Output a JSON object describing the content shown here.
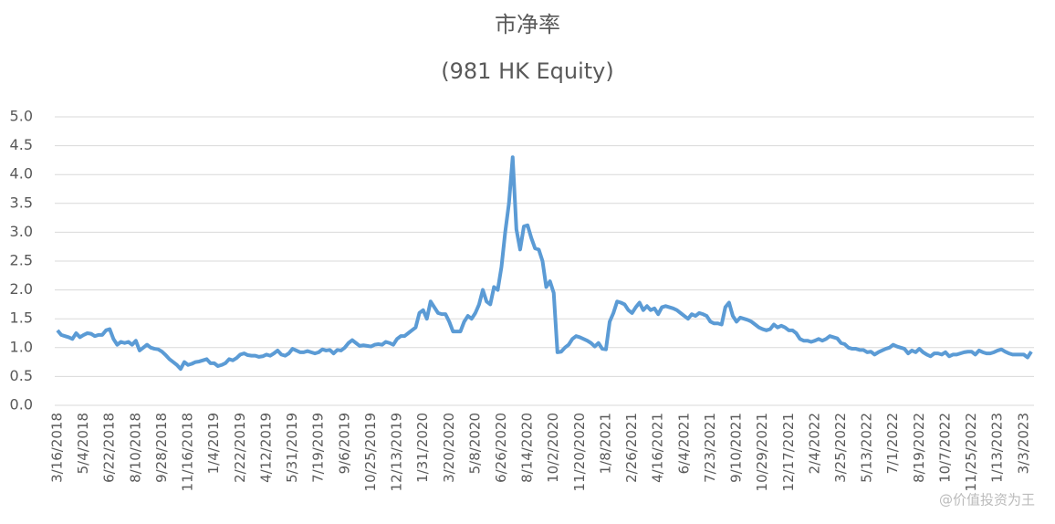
{
  "chart_data": {
    "type": "line",
    "title": "市净率",
    "subtitle": "(981 HK Equity)",
    "watermark": "@价值投资为王",
    "categories": [
      "3/16/2018",
      null,
      null,
      null,
      null,
      null,
      null,
      "5/4/2018",
      null,
      null,
      null,
      null,
      null,
      null,
      "6/22/2018",
      null,
      null,
      null,
      null,
      null,
      null,
      "8/10/2018",
      null,
      null,
      null,
      null,
      null,
      null,
      "9/28/2018",
      null,
      null,
      null,
      null,
      null,
      null,
      "11/16/2018",
      null,
      null,
      null,
      null,
      null,
      null,
      "1/4/2019",
      null,
      null,
      null,
      null,
      null,
      null,
      "2/22/2019",
      null,
      null,
      null,
      null,
      null,
      null,
      "4/12/2019",
      null,
      null,
      null,
      null,
      null,
      null,
      "5/31/2019",
      null,
      null,
      null,
      null,
      null,
      null,
      "7/19/2019",
      null,
      null,
      null,
      null,
      null,
      null,
      "9/6/2019",
      null,
      null,
      null,
      null,
      null,
      null,
      "10/25/2019",
      null,
      null,
      null,
      null,
      null,
      null,
      "12/13/2019",
      null,
      null,
      null,
      null,
      null,
      null,
      "1/31/2020",
      null,
      null,
      null,
      null,
      null,
      null,
      "3/20/2020",
      null,
      null,
      null,
      null,
      null,
      null,
      "5/8/2020",
      null,
      null,
      null,
      null,
      null,
      null,
      "6/26/2020",
      null,
      null,
      null,
      null,
      null,
      null,
      "8/14/2020",
      null,
      null,
      null,
      null,
      null,
      null,
      "10/2/2020",
      null,
      null,
      null,
      null,
      null,
      null,
      "11/20/2020",
      null,
      null,
      null,
      null,
      null,
      null,
      "1/8/2021",
      null,
      null,
      null,
      null,
      null,
      null,
      "2/26/2021",
      null,
      null,
      null,
      null,
      null,
      null,
      "4/16/2021",
      null,
      null,
      null,
      null,
      null,
      null,
      "6/4/2021",
      null,
      null,
      null,
      null,
      null,
      null,
      "7/23/2021",
      null,
      null,
      null,
      null,
      null,
      null,
      "9/10/2021",
      null,
      null,
      null,
      null,
      null,
      null,
      "10/29/2021",
      null,
      null,
      null,
      null,
      null,
      null,
      "12/17/2021",
      null,
      null,
      null,
      null,
      null,
      null,
      "2/4/2022",
      null,
      null,
      null,
      null,
      null,
      null,
      "3/25/2022",
      null,
      null,
      null,
      null,
      null,
      null,
      "5/13/2022",
      null,
      null,
      null,
      null,
      null,
      null,
      "7/1/2022",
      null,
      null,
      null,
      null,
      null,
      null,
      "8/19/2022",
      null,
      null,
      null,
      null,
      null,
      null,
      "10/7/2022",
      null,
      null,
      null,
      null,
      null,
      null,
      "11/25/2022",
      null,
      null,
      null,
      null,
      null,
      null,
      "1/13/2023",
      null,
      null,
      null,
      null,
      null,
      null,
      "3/3/2023",
      null,
      null
    ],
    "values": [
      1.3,
      1.22,
      1.2,
      1.18,
      1.15,
      1.25,
      1.18,
      1.22,
      1.25,
      1.24,
      1.2,
      1.22,
      1.22,
      1.3,
      1.32,
      1.15,
      1.05,
      1.1,
      1.08,
      1.1,
      1.05,
      1.12,
      0.95,
      1.0,
      1.05,
      1.0,
      0.98,
      0.97,
      0.93,
      0.87,
      0.8,
      0.75,
      0.7,
      0.63,
      0.75,
      0.7,
      0.72,
      0.75,
      0.76,
      0.78,
      0.8,
      0.73,
      0.73,
      0.68,
      0.7,
      0.73,
      0.8,
      0.78,
      0.82,
      0.88,
      0.9,
      0.87,
      0.86,
      0.86,
      0.84,
      0.85,
      0.88,
      0.86,
      0.9,
      0.95,
      0.88,
      0.86,
      0.9,
      0.98,
      0.95,
      0.92,
      0.92,
      0.94,
      0.92,
      0.9,
      0.92,
      0.97,
      0.95,
      0.96,
      0.9,
      0.96,
      0.95,
      1.0,
      1.08,
      1.13,
      1.08,
      1.03,
      1.04,
      1.03,
      1.02,
      1.05,
      1.06,
      1.05,
      1.1,
      1.08,
      1.05,
      1.15,
      1.2,
      1.2,
      1.25,
      1.3,
      1.35,
      1.6,
      1.65,
      1.5,
      1.8,
      1.7,
      1.6,
      1.58,
      1.58,
      1.45,
      1.28,
      1.28,
      1.28,
      1.45,
      1.55,
      1.5,
      1.6,
      1.75,
      2.0,
      1.8,
      1.75,
      2.05,
      2.0,
      2.4,
      3.0,
      3.5,
      4.3,
      3.05,
      2.7,
      3.1,
      3.12,
      2.9,
      2.72,
      2.7,
      2.5,
      2.05,
      2.15,
      1.95,
      0.92,
      0.93,
      1.0,
      1.05,
      1.15,
      1.2,
      1.18,
      1.15,
      1.12,
      1.08,
      1.02,
      1.08,
      0.98,
      0.97,
      1.45,
      1.6,
      1.8,
      1.78,
      1.75,
      1.65,
      1.6,
      1.7,
      1.78,
      1.65,
      1.72,
      1.65,
      1.68,
      1.58,
      1.7,
      1.72,
      1.7,
      1.68,
      1.65,
      1.6,
      1.55,
      1.5,
      1.58,
      1.55,
      1.6,
      1.58,
      1.55,
      1.45,
      1.42,
      1.42,
      1.4,
      1.7,
      1.78,
      1.55,
      1.45,
      1.52,
      1.5,
      1.48,
      1.45,
      1.4,
      1.35,
      1.32,
      1.3,
      1.32,
      1.4,
      1.35,
      1.38,
      1.35,
      1.3,
      1.3,
      1.25,
      1.15,
      1.12,
      1.12,
      1.1,
      1.12,
      1.15,
      1.12,
      1.15,
      1.2,
      1.18,
      1.16,
      1.08,
      1.06,
      1.0,
      0.98,
      0.98,
      0.96,
      0.96,
      0.92,
      0.93,
      0.88,
      0.92,
      0.95,
      0.98,
      1.0,
      1.05,
      1.02,
      1.0,
      0.98,
      0.9,
      0.95,
      0.92,
      0.98,
      0.92,
      0.88,
      0.85,
      0.9,
      0.9,
      0.88,
      0.92,
      0.85,
      0.88,
      0.88,
      0.9,
      0.92,
      0.93,
      0.93,
      0.88,
      0.95,
      0.92,
      0.9,
      0.9,
      0.92,
      0.95,
      0.97,
      0.93,
      0.9,
      0.88,
      0.88,
      0.88,
      0.88,
      0.83,
      0.93
    ],
    "color": "#5b9bd5",
    "ylim": [
      0,
      5
    ],
    "yticks": [
      {
        "value": 0,
        "label": "0.0"
      },
      {
        "value": 0.5,
        "label": "0.5"
      },
      {
        "value": 1,
        "label": "1.0"
      },
      {
        "value": 1.5,
        "label": "1.5"
      },
      {
        "value": 2,
        "label": "2.0"
      },
      {
        "value": 2.5,
        "label": "2.5"
      },
      {
        "value": 3,
        "label": "3.0"
      },
      {
        "value": 3.5,
        "label": "3.5"
      },
      {
        "value": 4,
        "label": "4.0"
      },
      {
        "value": 4.5,
        "label": "4.5"
      },
      {
        "value": 5,
        "label": "5.0"
      }
    ],
    "grid": true
  }
}
